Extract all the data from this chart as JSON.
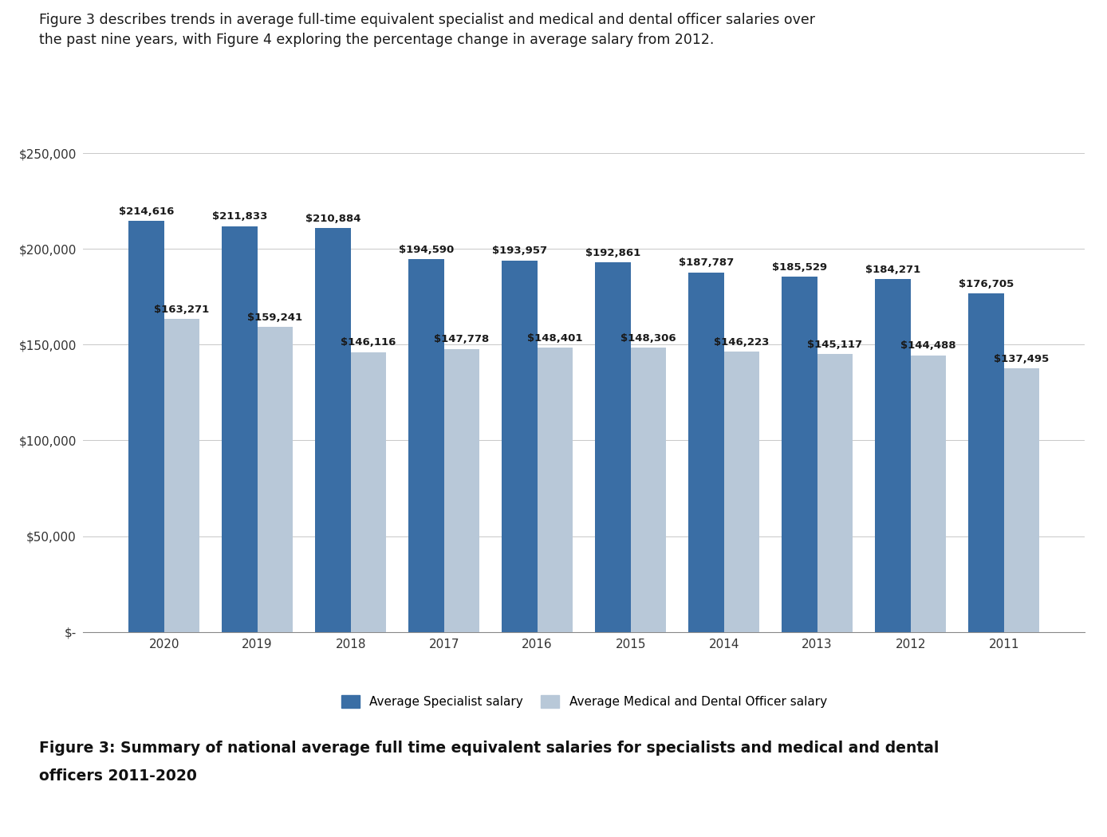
{
  "years": [
    "2020",
    "2019",
    "2018",
    "2017",
    "2016",
    "2015",
    "2014",
    "2013",
    "2012",
    "2011"
  ],
  "specialist_salaries": [
    214616,
    211833,
    210884,
    194590,
    193957,
    192861,
    187787,
    185529,
    184271,
    176705
  ],
  "medical_dental_salaries": [
    163271,
    159241,
    146116,
    147778,
    148401,
    148306,
    146223,
    145117,
    144488,
    137495
  ],
  "specialist_color": "#3A6EA5",
  "medical_dental_color": "#B8C8D8",
  "bar_width": 0.38,
  "ylim": [
    0,
    260000
  ],
  "yticks": [
    0,
    50000,
    100000,
    150000,
    200000,
    250000
  ],
  "ytick_labels": [
    "$-",
    "$50,000",
    "$100,000",
    "$150,000",
    "$200,000",
    "$250,000"
  ],
  "legend_specialist": "Average Specialist salary",
  "legend_medical": "Average Medical and Dental Officer salary",
  "header_text": "Figure 3 describes trends in average full-time equivalent specialist and medical and dental officer salaries over\nthe past nine years, with Figure 4 exploring the percentage change in average salary from 2012.",
  "caption_line1": "Figure 3: Summary of national average full time equivalent salaries for specialists and medical and dental",
  "caption_line2": "officers 2011-2020",
  "background_color": "#FFFFFF",
  "grid_color": "#C8C8C8",
  "label_fontsize": 9.5,
  "tick_fontsize": 11,
  "header_fontsize": 12.5,
  "caption_fontsize": 13.5
}
